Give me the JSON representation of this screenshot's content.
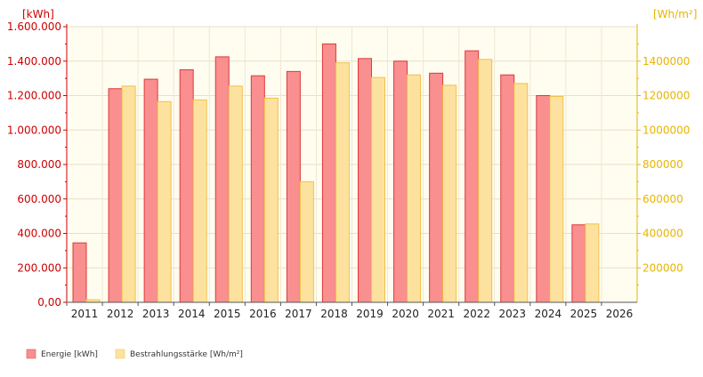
{
  "chart_data": {
    "type": "bar",
    "categories": [
      "2011",
      "2012",
      "2013",
      "2014",
      "2015",
      "2016",
      "2017",
      "2018",
      "2019",
      "2020",
      "2021",
      "2022",
      "2023",
      "2024",
      "2025",
      "2026"
    ],
    "left_axis": {
      "unit_label": "[kWh]",
      "ylim": [
        0,
        1600000
      ],
      "ticks": [
        0,
        200000,
        400000,
        600000,
        800000,
        1000000,
        1200000,
        1400000,
        1600000
      ],
      "tick_labels": [
        "0,00",
        "200.000",
        "400.000",
        "600.000",
        "800.000",
        "1.000.000",
        "1.200.000",
        "1.400.000",
        "1.600.000"
      ],
      "color": "#cc0000"
    },
    "right_axis": {
      "unit_label": "[Wh/m²]",
      "ylim": [
        0,
        1600000
      ],
      "ticks": [
        200000,
        400000,
        600000,
        800000,
        1000000,
        1200000,
        1400000
      ],
      "tick_labels": [
        "200000",
        "400000",
        "600000",
        "800000",
        "1000000",
        "1200000",
        "1400000"
      ],
      "color": "#e8b400"
    },
    "series": [
      {
        "name": "Energie [kWh]",
        "axis": "left",
        "color": "#f98f8f",
        "stroke": "#dd3a3a",
        "values": [
          345000,
          1240000,
          1295000,
          1350000,
          1425000,
          1315000,
          1340000,
          1500000,
          1415000,
          1400000,
          1330000,
          1460000,
          1320000,
          1200000,
          450000,
          null
        ]
      },
      {
        "name": "Bestrahlungsstärke [Wh/m²]",
        "axis": "right",
        "color": "#fde29f",
        "stroke": "#f2c04a",
        "values": [
          15000,
          1255000,
          1165000,
          1175000,
          1255000,
          1185000,
          700000,
          1390000,
          1305000,
          1320000,
          1260000,
          1410000,
          1270000,
          1195000,
          455000,
          null
        ]
      }
    ],
    "grid": true,
    "legend": "bottom-left"
  }
}
